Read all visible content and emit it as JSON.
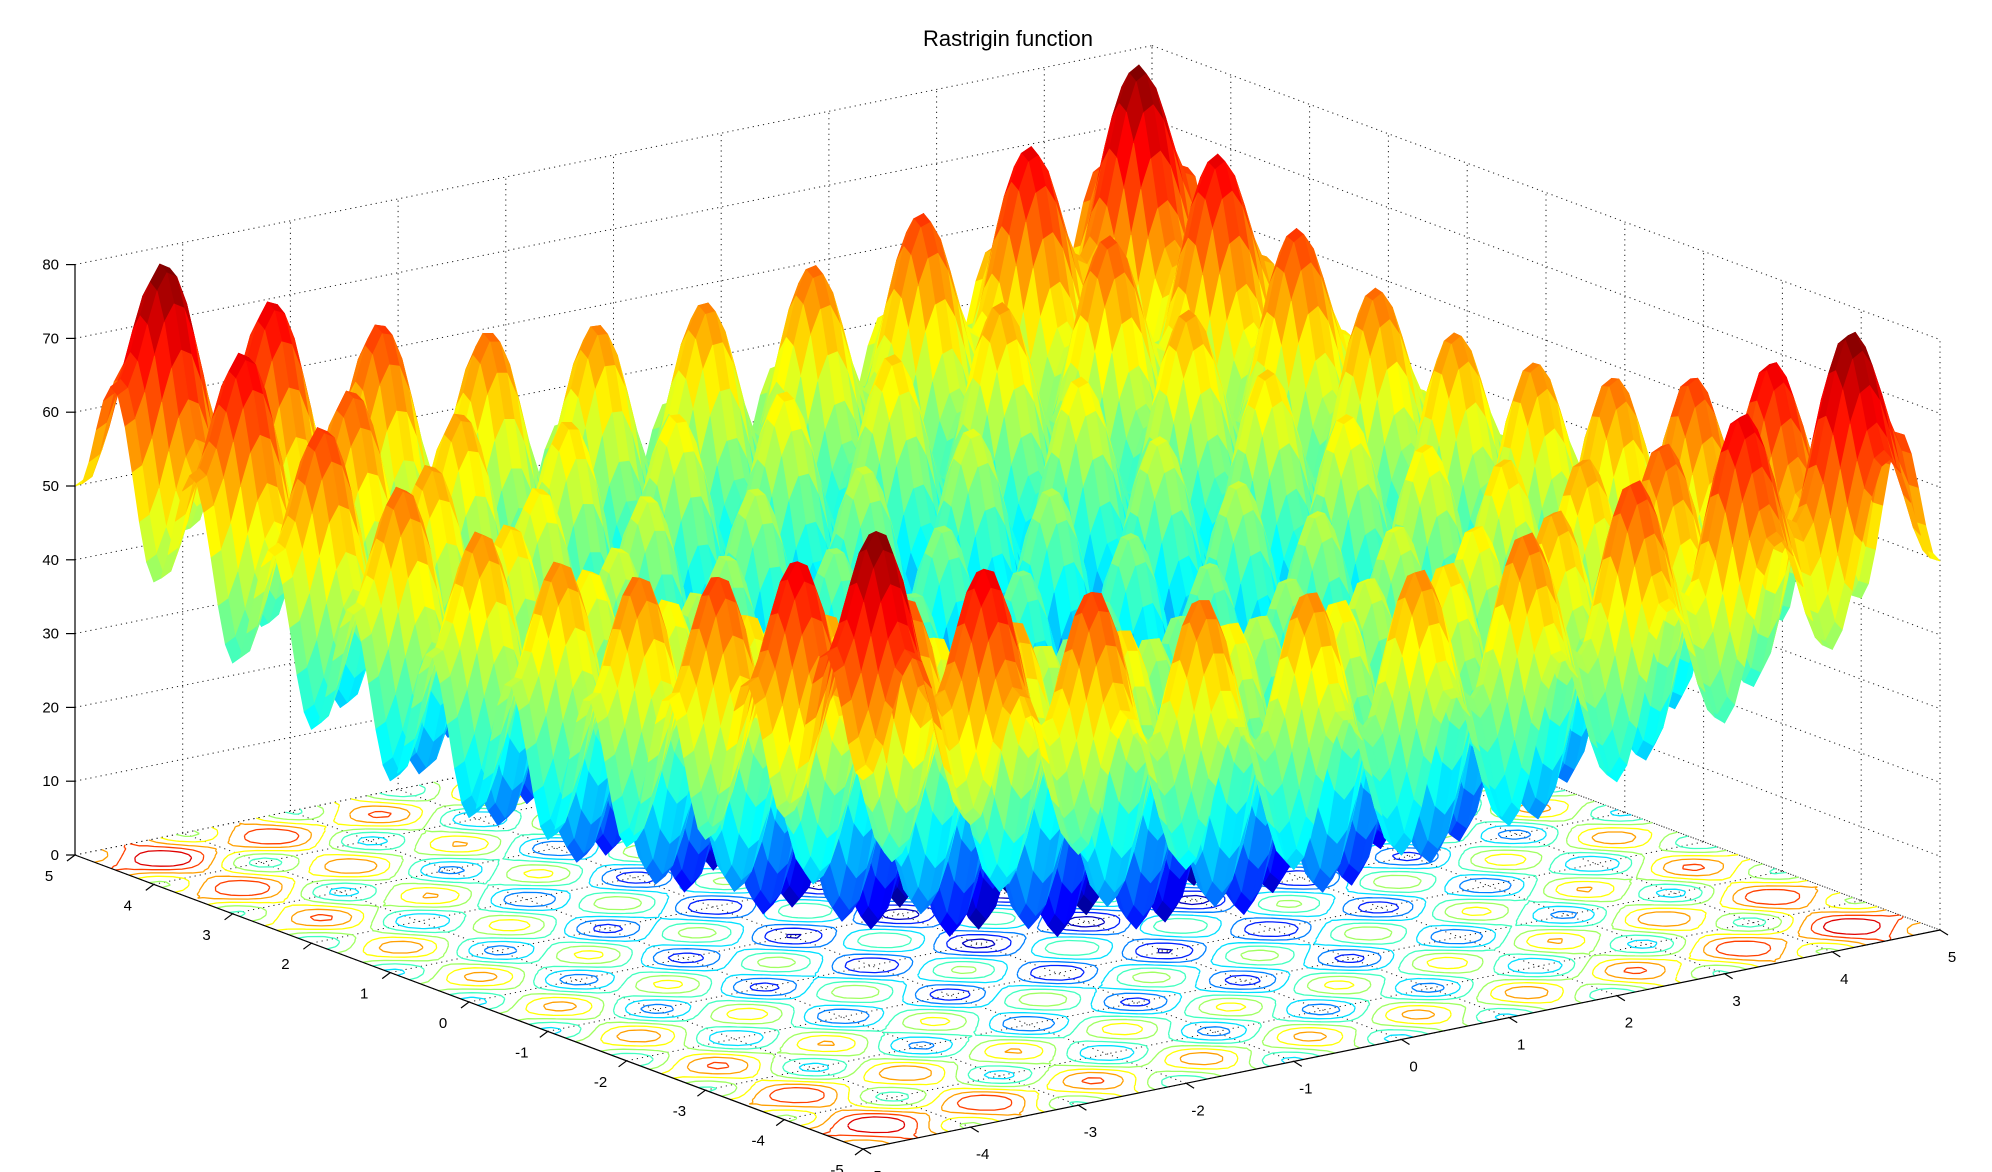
{
  "chart_data": {
    "type": "surface",
    "title": "Rastrigin function",
    "function": "f(x,y) = 20 + x^2 + y^2 - 10*(cos(2*pi*x) + cos(2*pi*y))",
    "x": [
      -5,
      -4,
      -3,
      -2,
      -1,
      0,
      1,
      2,
      3,
      4,
      5
    ],
    "y": [
      -5,
      -4,
      -3,
      -2,
      -1,
      0,
      1,
      2,
      3,
      4,
      5
    ],
    "xlim": [
      -5,
      5
    ],
    "ylim": [
      -5,
      5
    ],
    "zlim": [
      0,
      80
    ],
    "x_ticks": [
      "-5",
      "-4",
      "-3",
      "-2",
      "-1",
      "0",
      "1",
      "2",
      "3",
      "4",
      "5"
    ],
    "y_ticks": [
      "-5",
      "-4",
      "-3",
      "-2",
      "-1",
      "0",
      "1",
      "2",
      "3",
      "4",
      "5"
    ],
    "z_ticks": [
      "0",
      "10",
      "20",
      "30",
      "40",
      "50",
      "60",
      "70",
      "80"
    ],
    "grid": true,
    "colormap": "jet",
    "contour_projection": true
  }
}
